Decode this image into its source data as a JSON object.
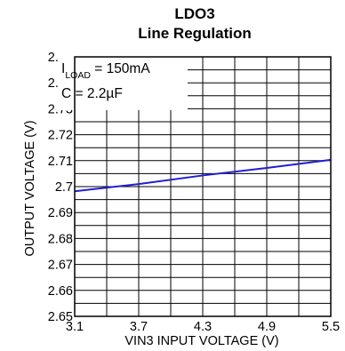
{
  "chart_data": {
    "type": "line",
    "title": "LDO3",
    "subtitle": "Line Regulation",
    "xlabel": "VIN3 INPUT VOLTAGE (V)",
    "ylabel": "OUTPUT VOLTAGE (V)",
    "xlim": [
      3.1,
      5.5
    ],
    "ylim": [
      2.65,
      2.75
    ],
    "xticks": [
      "3.1",
      "3.7",
      "4.3",
      "4.9",
      "5.5"
    ],
    "yticks": [
      "2.75",
      "2.74",
      "2.73",
      "2.72",
      "2.71",
      "2.7",
      "2.69",
      "2.68",
      "2.67",
      "2.66",
      "2.65"
    ],
    "grid": true,
    "legend": "none",
    "annotation": {
      "i_prefix": "I",
      "i_sub": "LOAD",
      "i_value": " = 150mA",
      "c_line": "C = 2.2µF"
    },
    "line_color": "#1f1fd0",
    "series": [
      {
        "x": [
          3.1,
          3.7,
          4.3,
          4.9,
          5.5
        ],
        "y": [
          2.6982,
          2.701,
          2.7043,
          2.7072,
          2.7103
        ]
      }
    ]
  }
}
